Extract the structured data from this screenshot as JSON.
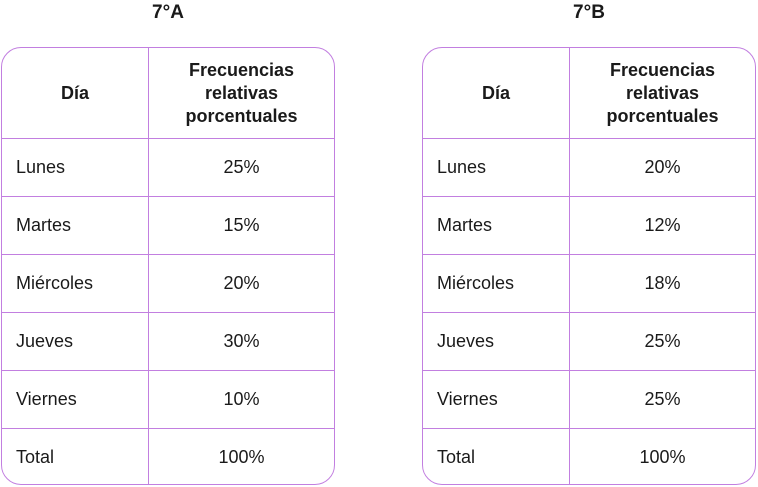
{
  "tables": [
    {
      "title": "7°A",
      "header": {
        "day": "Día",
        "freq_lines": [
          "Frecuencias",
          "relativas",
          "porcentuales"
        ]
      },
      "rows": [
        {
          "day": "Lunes",
          "value": "25%"
        },
        {
          "day": "Martes",
          "value": "15%"
        },
        {
          "day": "Miércoles",
          "value": "20%"
        },
        {
          "day": "Jueves",
          "value": "30%"
        },
        {
          "day": "Viernes",
          "value": "10%"
        },
        {
          "day": "Total",
          "value": "100%"
        }
      ]
    },
    {
      "title": "7°B",
      "header": {
        "day": "Día",
        "freq_lines": [
          "Frecuencias",
          "relativas",
          "porcentuales"
        ]
      },
      "rows": [
        {
          "day": "Lunes",
          "value": "20%"
        },
        {
          "day": "Martes",
          "value": "12%"
        },
        {
          "day": "Miércoles",
          "value": "18%"
        },
        {
          "day": "Jueves",
          "value": "25%"
        },
        {
          "day": "Viernes",
          "value": "25%"
        },
        {
          "day": "Total",
          "value": "100%"
        }
      ]
    }
  ],
  "colors": {
    "border": "#c27fe0",
    "text": "#1a1a1a"
  }
}
